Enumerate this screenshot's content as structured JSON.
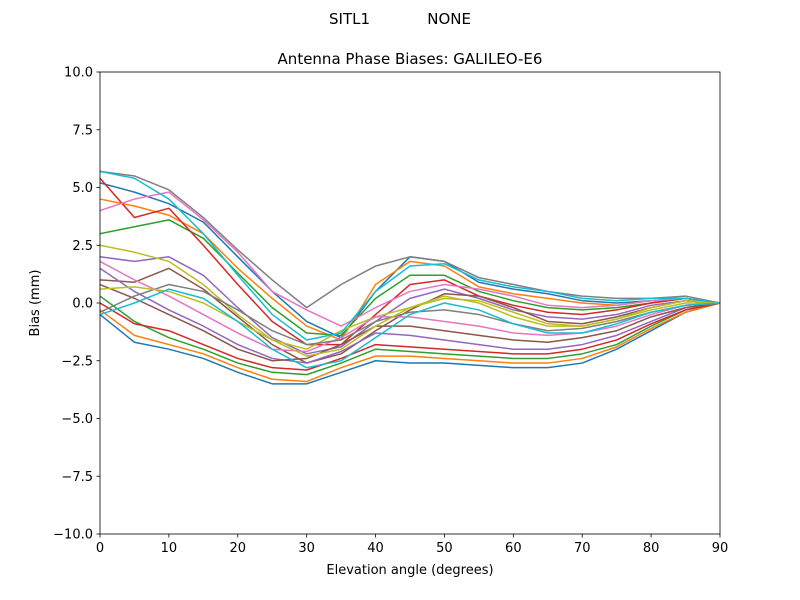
{
  "chart_data": {
    "type": "line",
    "suptitle": "SITL1            NONE",
    "title": "Antenna Phase Biases: GALILEO-E6",
    "xlabel": "Elevation angle (degrees)",
    "ylabel": "Bias (mm)",
    "xlim": [
      0,
      90
    ],
    "ylim": [
      -10,
      10
    ],
    "xticks": [
      0,
      10,
      20,
      30,
      40,
      50,
      60,
      70,
      80,
      90
    ],
    "yticks": [
      {
        "value": -10,
        "label": "−10.0"
      },
      {
        "value": -7.5,
        "label": "−7.5"
      },
      {
        "value": -5,
        "label": "−5.0"
      },
      {
        "value": -2.5,
        "label": "−2.5"
      },
      {
        "value": 0,
        "label": "0.0"
      },
      {
        "value": 2.5,
        "label": "2.5"
      },
      {
        "value": 5,
        "label": "5.0"
      },
      {
        "value": 7.5,
        "label": "7.5"
      },
      {
        "value": 10,
        "label": "10.0"
      }
    ],
    "grid": false,
    "x": [
      0,
      5,
      10,
      15,
      20,
      25,
      30,
      35,
      40,
      45,
      50,
      55,
      60,
      65,
      70,
      75,
      80,
      85,
      90
    ],
    "series": [
      {
        "color": "#1f77b4",
        "values": [
          5.2,
          4.8,
          4.3,
          3.5,
          2.0,
          0.5,
          -0.8,
          -1.5,
          0.5,
          2.0,
          1.8,
          0.9,
          0.6,
          0.4,
          0.1,
          0.0,
          0.1,
          0.2,
          0.0
        ]
      },
      {
        "color": "#ff7f0e",
        "values": [
          4.5,
          4.2,
          3.8,
          3.0,
          1.5,
          0.2,
          -1.0,
          -1.6,
          0.8,
          1.8,
          1.6,
          0.7,
          0.4,
          0.2,
          0.0,
          -0.1,
          0.1,
          0.2,
          0.0
        ]
      },
      {
        "color": "#2ca02c",
        "values": [
          3.0,
          3.3,
          3.6,
          2.8,
          1.3,
          -0.2,
          -1.3,
          -1.4,
          0.2,
          1.2,
          1.2,
          0.5,
          0.1,
          -0.2,
          -0.3,
          -0.2,
          0.0,
          0.2,
          0.0
        ]
      },
      {
        "color": "#d62728",
        "values": [
          5.4,
          3.7,
          4.1,
          2.5,
          0.8,
          -0.8,
          -1.8,
          -1.8,
          -0.5,
          0.8,
          1.0,
          0.3,
          -0.1,
          -0.4,
          -0.5,
          -0.3,
          0.0,
          0.2,
          0.0
        ]
      },
      {
        "color": "#9467bd",
        "values": [
          2.0,
          1.8,
          2.0,
          1.2,
          -0.2,
          -1.5,
          -2.2,
          -1.9,
          -0.8,
          0.2,
          0.6,
          0.2,
          -0.3,
          -0.6,
          -0.7,
          -0.5,
          -0.1,
          0.1,
          0.0
        ]
      },
      {
        "color": "#8c564b",
        "values": [
          1.0,
          0.9,
          1.5,
          0.6,
          -0.6,
          -1.8,
          -2.6,
          -2.2,
          -1.2,
          -0.3,
          0.4,
          0.3,
          -0.2,
          -0.8,
          -0.9,
          -0.6,
          -0.2,
          0.1,
          0.0
        ]
      },
      {
        "color": "#e377c2",
        "values": [
          4.0,
          4.5,
          4.8,
          3.6,
          2.2,
          0.5,
          -0.3,
          -1.0,
          -0.2,
          0.5,
          0.8,
          0.6,
          0.3,
          -0.1,
          -0.2,
          -0.1,
          0.1,
          0.2,
          0.0
        ]
      },
      {
        "color": "#7f7f7f",
        "values": [
          5.7,
          5.5,
          4.9,
          3.7,
          2.3,
          1.0,
          -0.2,
          0.8,
          1.6,
          2.0,
          1.8,
          1.1,
          0.8,
          0.5,
          0.3,
          0.2,
          0.2,
          0.3,
          0.0
        ]
      },
      {
        "color": "#bcbd22",
        "values": [
          2.5,
          2.2,
          1.8,
          0.8,
          -0.5,
          -1.6,
          -2.0,
          -1.2,
          -0.6,
          -0.2,
          0.3,
          0.0,
          -0.6,
          -1.0,
          -1.0,
          -0.7,
          -0.2,
          0.1,
          0.0
        ]
      },
      {
        "color": "#17becf",
        "values": [
          5.7,
          5.4,
          4.5,
          3.0,
          1.2,
          -0.5,
          -1.6,
          -1.3,
          0.5,
          1.6,
          1.7,
          1.0,
          0.7,
          0.5,
          0.2,
          0.1,
          0.2,
          0.2,
          0.0
        ]
      },
      {
        "color": "#1f77b4",
        "values": [
          -0.5,
          -1.7,
          -2.0,
          -2.4,
          -3.0,
          -3.5,
          -3.5,
          -3.0,
          -2.5,
          -2.6,
          -2.6,
          -2.7,
          -2.8,
          -2.8,
          -2.6,
          -2.0,
          -1.2,
          -0.4,
          0.0
        ]
      },
      {
        "color": "#ff7f0e",
        "values": [
          -0.3,
          -1.4,
          -1.8,
          -2.2,
          -2.8,
          -3.3,
          -3.4,
          -2.8,
          -2.3,
          -2.3,
          -2.4,
          -2.5,
          -2.6,
          -2.6,
          -2.4,
          -1.9,
          -1.1,
          -0.4,
          0.0
        ]
      },
      {
        "color": "#2ca02c",
        "values": [
          0.3,
          -0.8,
          -1.5,
          -2.0,
          -2.6,
          -3.0,
          -3.1,
          -2.6,
          -2.0,
          -2.1,
          -2.2,
          -2.3,
          -2.4,
          -2.4,
          -2.2,
          -1.8,
          -1.0,
          -0.3,
          0.0
        ]
      },
      {
        "color": "#d62728",
        "values": [
          0.0,
          -0.9,
          -1.2,
          -1.8,
          -2.4,
          -2.8,
          -2.9,
          -2.4,
          -1.8,
          -1.9,
          -2.0,
          -2.1,
          -2.2,
          -2.2,
          -2.0,
          -1.6,
          -0.9,
          -0.3,
          0.0
        ]
      },
      {
        "color": "#9467bd",
        "values": [
          1.5,
          0.5,
          -0.3,
          -1.0,
          -1.8,
          -2.4,
          -2.6,
          -2.1,
          -1.3,
          -1.4,
          -1.6,
          -1.8,
          -2.0,
          -2.0,
          -1.8,
          -1.4,
          -0.8,
          -0.2,
          0.0
        ]
      },
      {
        "color": "#8c564b",
        "values": [
          0.8,
          0.2,
          -0.5,
          -1.2,
          -2.0,
          -2.5,
          -2.4,
          -1.8,
          -1.0,
          -1.0,
          -1.2,
          -1.4,
          -1.6,
          -1.7,
          -1.5,
          -1.2,
          -0.6,
          -0.2,
          0.0
        ]
      },
      {
        "color": "#e377c2",
        "values": [
          1.8,
          1.0,
          0.3,
          -0.5,
          -1.3,
          -2.0,
          -2.1,
          -1.5,
          -0.6,
          -0.6,
          -0.8,
          -1.0,
          -1.3,
          -1.4,
          -1.3,
          -1.0,
          -0.5,
          -0.1,
          0.0
        ]
      },
      {
        "color": "#7f7f7f",
        "values": [
          -0.4,
          0.3,
          0.8,
          0.5,
          -0.3,
          -1.2,
          -1.8,
          -1.6,
          -0.8,
          -0.4,
          -0.3,
          -0.5,
          -0.9,
          -1.2,
          -1.1,
          -0.8,
          -0.4,
          -0.1,
          0.0
        ]
      },
      {
        "color": "#bcbd22",
        "values": [
          0.6,
          0.7,
          0.5,
          0.0,
          -0.8,
          -1.6,
          -2.3,
          -2.0,
          -1.0,
          -0.2,
          0.2,
          0.1,
          -0.4,
          -0.9,
          -1.0,
          -0.7,
          -0.3,
          0.0,
          0.0
        ]
      },
      {
        "color": "#17becf",
        "values": [
          -0.5,
          0.0,
          0.6,
          0.2,
          -0.8,
          -2.0,
          -2.8,
          -2.5,
          -1.5,
          -0.5,
          0.0,
          -0.3,
          -0.9,
          -1.3,
          -1.3,
          -0.9,
          -0.4,
          -0.1,
          0.0
        ]
      }
    ]
  }
}
